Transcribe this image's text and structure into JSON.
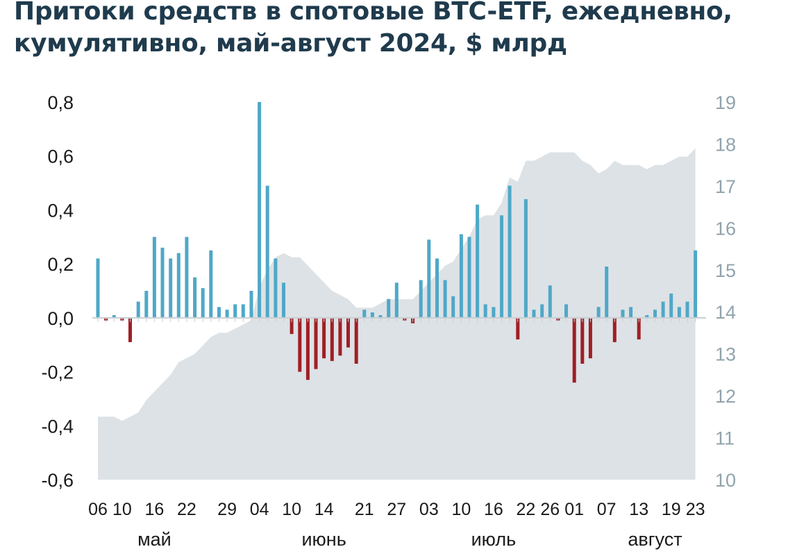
{
  "title_lines": [
    "Притоки средств в спотовые BTC-ETF, ежедневно,",
    "кумулятивно, май-август 2024, $ млрд"
  ],
  "colors": {
    "positive": "#4fa8c8",
    "negative": "#a01f24",
    "area": "#dde2e6",
    "title": "#1f3b4d",
    "right_axis": "#8fa3ad"
  },
  "chart_data": {
    "type": "bar",
    "title": "Притоки средств в спотовые BTC-ETF, ежедневно, кумулятивно, май-август 2024, $ млрд",
    "xlabel": "",
    "ylabel": "",
    "ylim": [
      -0.6,
      0.8
    ],
    "y2lim": [
      10,
      19
    ],
    "y_ticks": [
      "0,8",
      "0,6",
      "0,4",
      "0,2",
      "0,0",
      "-0,2",
      "-0,4",
      "-0,6"
    ],
    "y2_ticks": [
      "19",
      "18",
      "17",
      "16",
      "15",
      "14",
      "13",
      "12",
      "11",
      "10"
    ],
    "x_tick_labels": [
      "06",
      "10",
      "16",
      "22",
      "29",
      "04",
      "10",
      "14",
      "21",
      "27",
      "03",
      "10",
      "16",
      "22",
      "26",
      "01",
      "07",
      "13",
      "19",
      "23"
    ],
    "x_tick_positions": [
      0,
      3,
      7,
      11,
      16,
      20,
      24,
      28,
      33,
      37,
      41,
      45,
      49,
      53,
      56,
      59,
      63,
      67,
      71,
      74
    ],
    "month_labels": [
      "май",
      "июнь",
      "июль",
      "август"
    ],
    "month_positions": [
      7,
      28,
      49,
      69
    ],
    "series": [
      {
        "type": "bar",
        "values": [
          0.22,
          -0.01,
          0.01,
          -0.01,
          -0.09,
          0.06,
          0.1,
          0.3,
          0.26,
          0.22,
          0.24,
          0.3,
          0.15,
          0.11,
          0.25,
          0.04,
          0.03,
          0.05,
          0.05,
          0.1,
          0.8,
          0.49,
          0.22,
          0.13,
          -0.06,
          -0.2,
          -0.23,
          -0.19,
          -0.15,
          -0.16,
          -0.14,
          -0.11,
          -0.17,
          0.03,
          0.02,
          0.01,
          0.07,
          0.13,
          -0.01,
          -0.02,
          0.14,
          0.29,
          0.22,
          0.14,
          0.08,
          0.31,
          0.3,
          0.42,
          0.05,
          0.04,
          0.38,
          0.49,
          -0.08,
          0.44,
          0.03,
          0.05,
          0.12,
          -0.01,
          0.05,
          -0.24,
          -0.17,
          -0.15,
          0.04,
          0.19,
          -0.09,
          0.03,
          0.04,
          -0.08,
          0.01,
          0.03,
          0.06,
          0.09,
          0.04,
          0.06,
          0.25
        ]
      },
      {
        "type": "area",
        "values": [
          11.5,
          11.5,
          11.5,
          11.4,
          11.5,
          11.6,
          11.9,
          12.1,
          12.3,
          12.5,
          12.8,
          12.9,
          13.0,
          13.2,
          13.4,
          13.5,
          13.5,
          13.6,
          13.7,
          13.8,
          14.6,
          15.0,
          15.3,
          15.4,
          15.3,
          15.3,
          15.1,
          14.9,
          14.7,
          14.5,
          14.4,
          14.3,
          14.1,
          14.1,
          14.1,
          14.2,
          14.3,
          14.3,
          14.3,
          14.3,
          14.5,
          14.7,
          14.9,
          15.1,
          15.2,
          15.5,
          15.8,
          16.2,
          16.3,
          16.3,
          16.6,
          17.2,
          17.1,
          17.6,
          17.6,
          17.7,
          17.8,
          17.8,
          17.8,
          17.8,
          17.6,
          17.5,
          17.3,
          17.4,
          17.6,
          17.5,
          17.5,
          17.5,
          17.4,
          17.5,
          17.5,
          17.6,
          17.7,
          17.7,
          17.9
        ]
      }
    ]
  }
}
